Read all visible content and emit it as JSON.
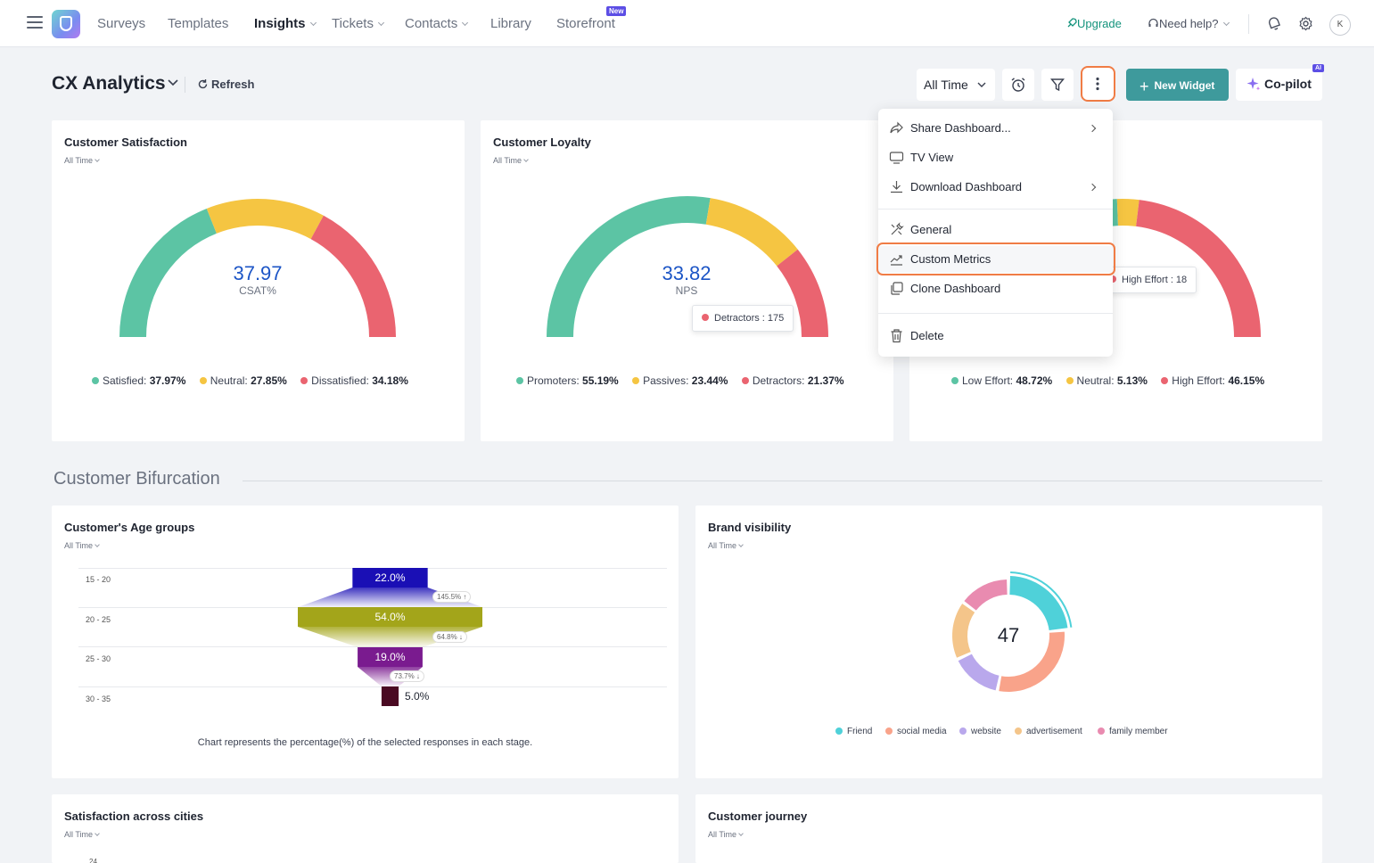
{
  "nav": {
    "items": [
      "Surveys",
      "Templates",
      "Insights",
      "Tickets",
      "Contacts",
      "Library",
      "Storefront"
    ],
    "new_badge": "New",
    "upgrade": "Upgrade",
    "need_help": "Need help?",
    "avatar_initial": "K"
  },
  "header": {
    "title": "CX Analytics",
    "refresh": "Refresh",
    "time_filter": "All Time",
    "new_widget": "New Widget",
    "copilot": "Co-pilot",
    "ai_badge": "AI"
  },
  "cards": {
    "csat": {
      "title": "Customer Satisfaction",
      "period": "All Time",
      "value": "37.97",
      "label": "CSAT%",
      "legend": [
        {
          "name": "Satisfied:",
          "value": "37.97%",
          "color": "#5cc4a4"
        },
        {
          "name": "Neutral:",
          "value": "27.85%",
          "color": "#f5c542"
        },
        {
          "name": "Dissatisfied:",
          "value": "34.18%",
          "color": "#ea6470"
        }
      ]
    },
    "nps": {
      "title": "Customer Loyalty",
      "period": "All Time",
      "value": "33.82",
      "label": "NPS",
      "tooltip": "Detractors : 175",
      "legend": [
        {
          "name": "Promoters:",
          "value": "55.19%",
          "color": "#5cc4a4"
        },
        {
          "name": "Passives:",
          "value": "23.44%",
          "color": "#f5c542"
        },
        {
          "name": "Detractors:",
          "value": "21.37%",
          "color": "#ea6470"
        }
      ]
    },
    "ces": {
      "tooltip": "High Effort : 18",
      "legend": [
        {
          "name": "Low Effort:",
          "value": "48.72%",
          "color": "#5cc4a4"
        },
        {
          "name": "Neutral:",
          "value": "5.13%",
          "color": "#f5c542"
        },
        {
          "name": "High Effort:",
          "value": "46.15%",
          "color": "#ea6470"
        }
      ]
    },
    "section_title": "Customer Bifurcation",
    "age": {
      "title": "Customer's Age groups",
      "period": "All Time",
      "stages": [
        {
          "label": "15 - 20",
          "value": "22.0%",
          "color": "#1a0fb5"
        },
        {
          "label": "20 - 25",
          "value": "54.0%",
          "color": "#a3a51a"
        },
        {
          "label": "25 - 30",
          "value": "19.0%",
          "color": "#7a1b8f"
        },
        {
          "label": "30 - 35",
          "value": "5.0%",
          "color": "#4a0a22"
        }
      ],
      "changes": [
        "145.5%",
        "64.8%",
        "73.7%"
      ],
      "note": "Chart represents the percentage(%) of the selected responses in each stage."
    },
    "brand": {
      "title": "Brand visibility",
      "period": "All Time",
      "total": "47",
      "legend": [
        {
          "name": "Friend",
          "color": "#4fd1d9"
        },
        {
          "name": "social media",
          "color": "#f9a38a"
        },
        {
          "name": "website",
          "color": "#b9a8ec"
        },
        {
          "name": "advertisement",
          "color": "#f4c58a"
        },
        {
          "name": "family member",
          "color": "#e98bb0"
        }
      ]
    },
    "cities": {
      "title": "Satisfaction across cities",
      "period": "All Time",
      "tick": "24"
    },
    "journey": {
      "title": "Customer journey",
      "period": "All Time"
    }
  },
  "menu": {
    "items": [
      "Share Dashboard...",
      "TV View",
      "Download Dashboard",
      "General",
      "Custom Metrics",
      "Clone Dashboard",
      "Delete"
    ]
  },
  "chart_data": [
    {
      "type": "pie",
      "title": "Customer Satisfaction",
      "labels": [
        "Satisfied",
        "Neutral",
        "Dissatisfied"
      ],
      "values": [
        37.97,
        27.85,
        34.18
      ]
    },
    {
      "type": "pie",
      "title": "Customer Loyalty",
      "labels": [
        "Promoters",
        "Passives",
        "Detractors"
      ],
      "values": [
        55.19,
        23.44,
        21.37
      ]
    },
    {
      "type": "pie",
      "labels": [
        "Low Effort",
        "Neutral",
        "High Effort"
      ],
      "values": [
        48.72,
        5.13,
        46.15
      ]
    },
    {
      "type": "bar",
      "title": "Customer's Age groups",
      "categories": [
        "15 - 20",
        "20 - 25",
        "25 - 30",
        "30 - 35"
      ],
      "values": [
        22.0,
        54.0,
        19.0,
        5.0
      ]
    },
    {
      "type": "pie",
      "title": "Brand visibility",
      "labels": [
        "Friend",
        "social media",
        "website",
        "advertisement",
        "family member"
      ],
      "values": [
        11,
        14,
        7,
        8,
        7
      ]
    }
  ]
}
